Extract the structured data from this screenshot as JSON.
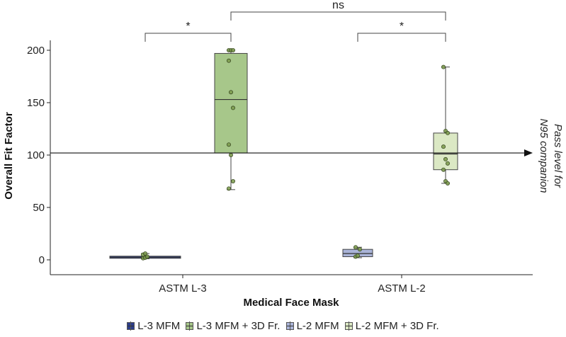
{
  "chart_data": {
    "type": "box",
    "xlabel": "Medical Face Mask",
    "ylabel": "Overall Fit Factor",
    "ylim": [
      0,
      200
    ],
    "yticks": [
      0,
      50,
      100,
      150,
      200
    ],
    "categories": [
      "ASTM L-3",
      "ASTM L-2"
    ],
    "series": [
      {
        "name": "L-3 MFM",
        "category": "ASTM L-3",
        "color": "#2c3e8c",
        "q1": 1.5,
        "median": 2.5,
        "q3": 3.5,
        "whisker_low": 1,
        "whisker_high": 6,
        "points": [
          1.5,
          2,
          3,
          5,
          6
        ]
      },
      {
        "name": "L-3 MFM + 3D Fr.",
        "category": "ASTM L-3",
        "color": "#a7c78a",
        "q1": 102,
        "median": 153,
        "q3": 197,
        "whisker_low": 67,
        "whisker_high": 200,
        "points": [
          200,
          200,
          200,
          190,
          160,
          145,
          110,
          100,
          75,
          68
        ]
      },
      {
        "name": "L-2 MFM",
        "category": "ASTM L-2",
        "color": "#aab4d8",
        "q1": 3,
        "median": 6,
        "q3": 10,
        "whisker_low": 2,
        "whisker_high": 12,
        "points": [
          3,
          4,
          10,
          12
        ]
      },
      {
        "name": "L-2 MFM + 3D Fr.",
        "category": "ASTM L-2",
        "color": "#dbe8c4",
        "q1": 86,
        "median": 101,
        "q3": 121,
        "whisker_low": 73,
        "whisker_high": 184,
        "points": [
          184,
          123,
          121,
          108,
          96,
          92,
          86,
          75,
          73
        ]
      }
    ],
    "reference_line": {
      "y": 102,
      "label": "Pass level for N95 companion"
    },
    "significance": [
      {
        "label": "*",
        "from": "L-3 MFM",
        "to": "L-3 MFM + 3D Fr."
      },
      {
        "label": "ns",
        "from": "L-3 MFM + 3D Fr.",
        "to": "L-2 MFM + 3D Fr."
      },
      {
        "label": "*",
        "from": "L-2 MFM",
        "to": "L-2 MFM + 3D Fr."
      }
    ],
    "legend_position": "bottom"
  },
  "pass_lines": [
    "Pass level for",
    "N95 companion"
  ]
}
